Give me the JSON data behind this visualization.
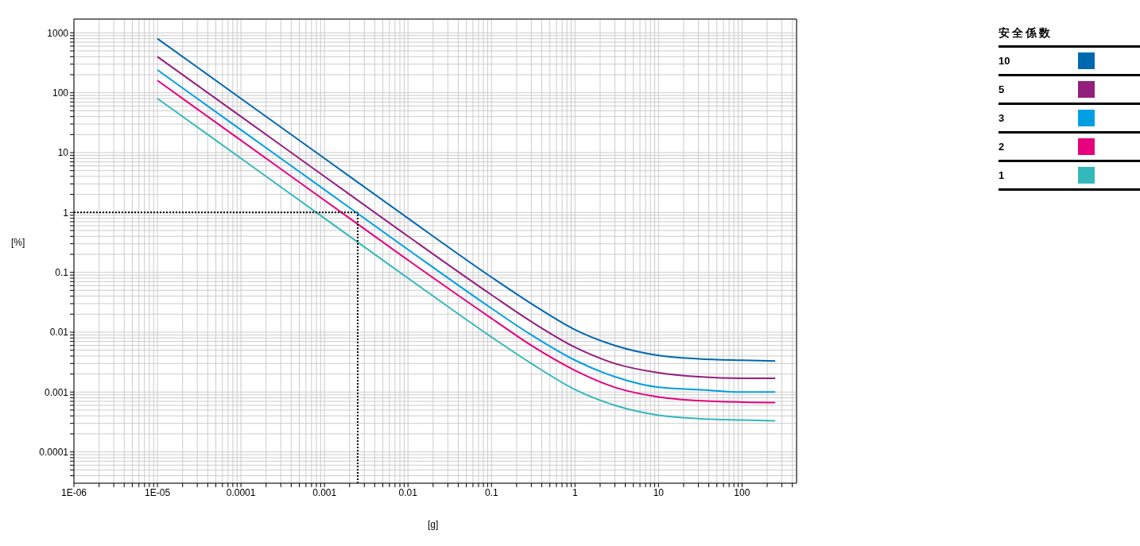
{
  "chart_data": {
    "type": "line",
    "xlabel": "[g]",
    "ylabel": "[%]",
    "legend_title": "安全係数",
    "legend": "right",
    "grid": true,
    "log": "xy",
    "marker": "none",
    "line_style": "solid",
    "x": [
      1e-05,
      0.0001,
      0.001,
      0.01,
      0.1,
      0.3,
      1,
      3,
      10,
      30,
      100,
      250
    ],
    "series": [
      {
        "name": "10",
        "color": "#0068b0",
        "values": [
          800,
          80,
          8,
          0.8,
          0.083,
          0.03,
          0.011,
          0.006,
          0.0041,
          0.0036,
          0.0034,
          0.0033
        ]
      },
      {
        "name": "5",
        "color": "#931f7d",
        "values": [
          400,
          40,
          4,
          0.4,
          0.042,
          0.015,
          0.0056,
          0.003,
          0.0021,
          0.0018,
          0.0017,
          0.0017
        ]
      },
      {
        "name": "3",
        "color": "#009fe3",
        "values": [
          240,
          24,
          2.4,
          0.24,
          0.025,
          0.009,
          0.0034,
          0.0018,
          0.0012,
          0.0011,
          0.001,
          0.001
        ]
      },
      {
        "name": "2",
        "color": "#e6007e",
        "values": [
          160,
          16,
          1.6,
          0.16,
          0.017,
          0.006,
          0.0023,
          0.0012,
          0.00083,
          0.00072,
          0.00068,
          0.00067
        ]
      },
      {
        "name": "1",
        "color": "#33b8bc",
        "values": [
          80,
          8,
          0.8,
          0.08,
          0.0083,
          0.003,
          0.0011,
          0.0006,
          0.00041,
          0.00036,
          0.00034,
          0.00033
        ]
      }
    ],
    "xlim": [
      1e-06,
      450
    ],
    "xticks": [
      {
        "value": 1e-06,
        "label": "1E-06"
      },
      {
        "value": 2e-06,
        "label": null
      },
      {
        "value": 3e-06,
        "label": null
      },
      {
        "value": 4e-06,
        "label": null
      },
      {
        "value": 5e-06,
        "label": null
      },
      {
        "value": 6e-06,
        "label": null
      },
      {
        "value": 7e-06,
        "label": null
      },
      {
        "value": 8e-06,
        "label": null
      },
      {
        "value": 9e-06,
        "label": null
      },
      {
        "value": 1e-05,
        "label": "1E-05"
      },
      {
        "value": 2e-05,
        "label": null
      },
      {
        "value": 3e-05,
        "label": null
      },
      {
        "value": 4e-05,
        "label": null
      },
      {
        "value": 5e-05,
        "label": null
      },
      {
        "value": 6e-05,
        "label": null
      },
      {
        "value": 7e-05,
        "label": null
      },
      {
        "value": 8e-05,
        "label": null
      },
      {
        "value": 9e-05,
        "label": null
      },
      0.0001,
      {
        "value": 0.0002,
        "label": null
      },
      {
        "value": 0.0003,
        "label": null
      },
      {
        "value": 0.0004,
        "label": null
      },
      {
        "value": 0.0005,
        "label": null
      },
      {
        "value": 0.0006,
        "label": null
      },
      {
        "value": 0.0007,
        "label": null
      },
      {
        "value": 0.0008,
        "label": null
      },
      {
        "value": 0.0009,
        "label": null
      },
      0.001,
      {
        "value": 0.002,
        "label": null
      },
      {
        "value": 0.003,
        "label": null
      },
      {
        "value": 0.004,
        "label": null
      },
      {
        "value": 0.005,
        "label": null
      },
      {
        "value": 0.006,
        "label": null
      },
      {
        "value": 0.007,
        "label": null
      },
      {
        "value": 0.008,
        "label": null
      },
      {
        "value": 0.009,
        "label": null
      },
      0.01,
      {
        "value": 0.02,
        "label": null
      },
      {
        "value": 0.03,
        "label": null
      },
      {
        "value": 0.04,
        "label": null
      },
      {
        "value": 0.05,
        "label": null
      },
      {
        "value": 0.06,
        "label": null
      },
      {
        "value": 0.07,
        "label": null
      },
      {
        "value": 0.08,
        "label": null
      },
      {
        "value": 0.09,
        "label": null
      },
      0.1,
      {
        "value": 0.2,
        "label": null
      },
      {
        "value": 0.3,
        "label": null
      },
      {
        "value": 0.4,
        "label": null
      },
      {
        "value": 0.5,
        "label": null
      },
      {
        "value": 0.6,
        "label": null
      },
      {
        "value": 0.7,
        "label": null
      },
      {
        "value": 0.8,
        "label": null
      },
      {
        "value": 0.9,
        "label": null
      },
      1,
      {
        "value": 2,
        "label": null
      },
      {
        "value": 3,
        "label": null
      },
      {
        "value": 4,
        "label": null
      },
      {
        "value": 5,
        "label": null
      },
      {
        "value": 6,
        "label": null
      },
      {
        "value": 7,
        "label": null
      },
      {
        "value": 8,
        "label": null
      },
      {
        "value": 9,
        "label": null
      },
      10,
      {
        "value": 20,
        "label": null
      },
      {
        "value": 30,
        "label": null
      },
      {
        "value": 40,
        "label": null
      },
      {
        "value": 50,
        "label": null
      },
      {
        "value": 60,
        "label": null
      },
      {
        "value": 70,
        "label": null
      },
      {
        "value": 80,
        "label": null
      },
      {
        "value": 90,
        "label": null
      },
      100,
      {
        "value": 200,
        "label": null
      },
      {
        "value": 300,
        "label": null
      },
      {
        "value": 400,
        "label": null
      }
    ],
    "ylim": [
      3e-05,
      1700
    ],
    "yticks": [
      {
        "value": 4e-05,
        "label": null
      },
      {
        "value": 5e-05,
        "label": null
      },
      {
        "value": 6e-05,
        "label": null
      },
      {
        "value": 7e-05,
        "label": null
      },
      {
        "value": 8e-05,
        "label": null
      },
      {
        "value": 9e-05,
        "label": null
      },
      0.0001,
      {
        "value": 0.0002,
        "label": null
      },
      {
        "value": 0.0003,
        "label": null
      },
      {
        "value": 0.0004,
        "label": null
      },
      {
        "value": 0.0005,
        "label": null
      },
      {
        "value": 0.0006,
        "label": null
      },
      {
        "value": 0.0007,
        "label": null
      },
      {
        "value": 0.0008,
        "label": null
      },
      {
        "value": 0.0009,
        "label": null
      },
      0.001,
      {
        "value": 0.002,
        "label": null
      },
      {
        "value": 0.003,
        "label": null
      },
      {
        "value": 0.004,
        "label": null
      },
      {
        "value": 0.005,
        "label": null
      },
      {
        "value": 0.006,
        "label": null
      },
      {
        "value": 0.007,
        "label": null
      },
      {
        "value": 0.008,
        "label": null
      },
      {
        "value": 0.009,
        "label": null
      },
      0.01,
      {
        "value": 0.02,
        "label": null
      },
      {
        "value": 0.03,
        "label": null
      },
      {
        "value": 0.04,
        "label": null
      },
      {
        "value": 0.05,
        "label": null
      },
      {
        "value": 0.06,
        "label": null
      },
      {
        "value": 0.07,
        "label": null
      },
      {
        "value": 0.08,
        "label": null
      },
      {
        "value": 0.09,
        "label": null
      },
      0.1,
      {
        "value": 0.2,
        "label": null
      },
      {
        "value": 0.3,
        "label": null
      },
      {
        "value": 0.4,
        "label": null
      },
      {
        "value": 0.5,
        "label": null
      },
      {
        "value": 0.6,
        "label": null
      },
      {
        "value": 0.7,
        "label": null
      },
      {
        "value": 0.8,
        "label": null
      },
      {
        "value": 0.9,
        "label": null
      },
      1,
      {
        "value": 2,
        "label": null
      },
      {
        "value": 3,
        "label": null
      },
      {
        "value": 4,
        "label": null
      },
      {
        "value": 5,
        "label": null
      },
      {
        "value": 6,
        "label": null
      },
      {
        "value": 7,
        "label": null
      },
      {
        "value": 8,
        "label": null
      },
      {
        "value": 9,
        "label": null
      },
      10,
      {
        "value": 20,
        "label": null
      },
      {
        "value": 30,
        "label": null
      },
      {
        "value": 40,
        "label": null
      },
      {
        "value": 50,
        "label": null
      },
      {
        "value": 60,
        "label": null
      },
      {
        "value": 70,
        "label": null
      },
      {
        "value": 80,
        "label": null
      },
      {
        "value": 90,
        "label": null
      },
      100,
      {
        "value": 200,
        "label": null
      },
      {
        "value": 300,
        "label": null
      },
      {
        "value": 400,
        "label": null
      },
      {
        "value": 500,
        "label": null
      },
      {
        "value": 600,
        "label": null
      },
      {
        "value": 700,
        "label": null
      },
      {
        "value": 800,
        "label": null
      },
      {
        "value": 900,
        "label": null
      },
      1000
    ],
    "ref_lines": [
      {
        "axis": "y",
        "value": 1,
        "color": "#000000",
        "line_style": "dotted"
      },
      {
        "axis": "x",
        "value": 0.0025,
        "color": "#000000",
        "line_style": "dotted"
      }
    ]
  }
}
